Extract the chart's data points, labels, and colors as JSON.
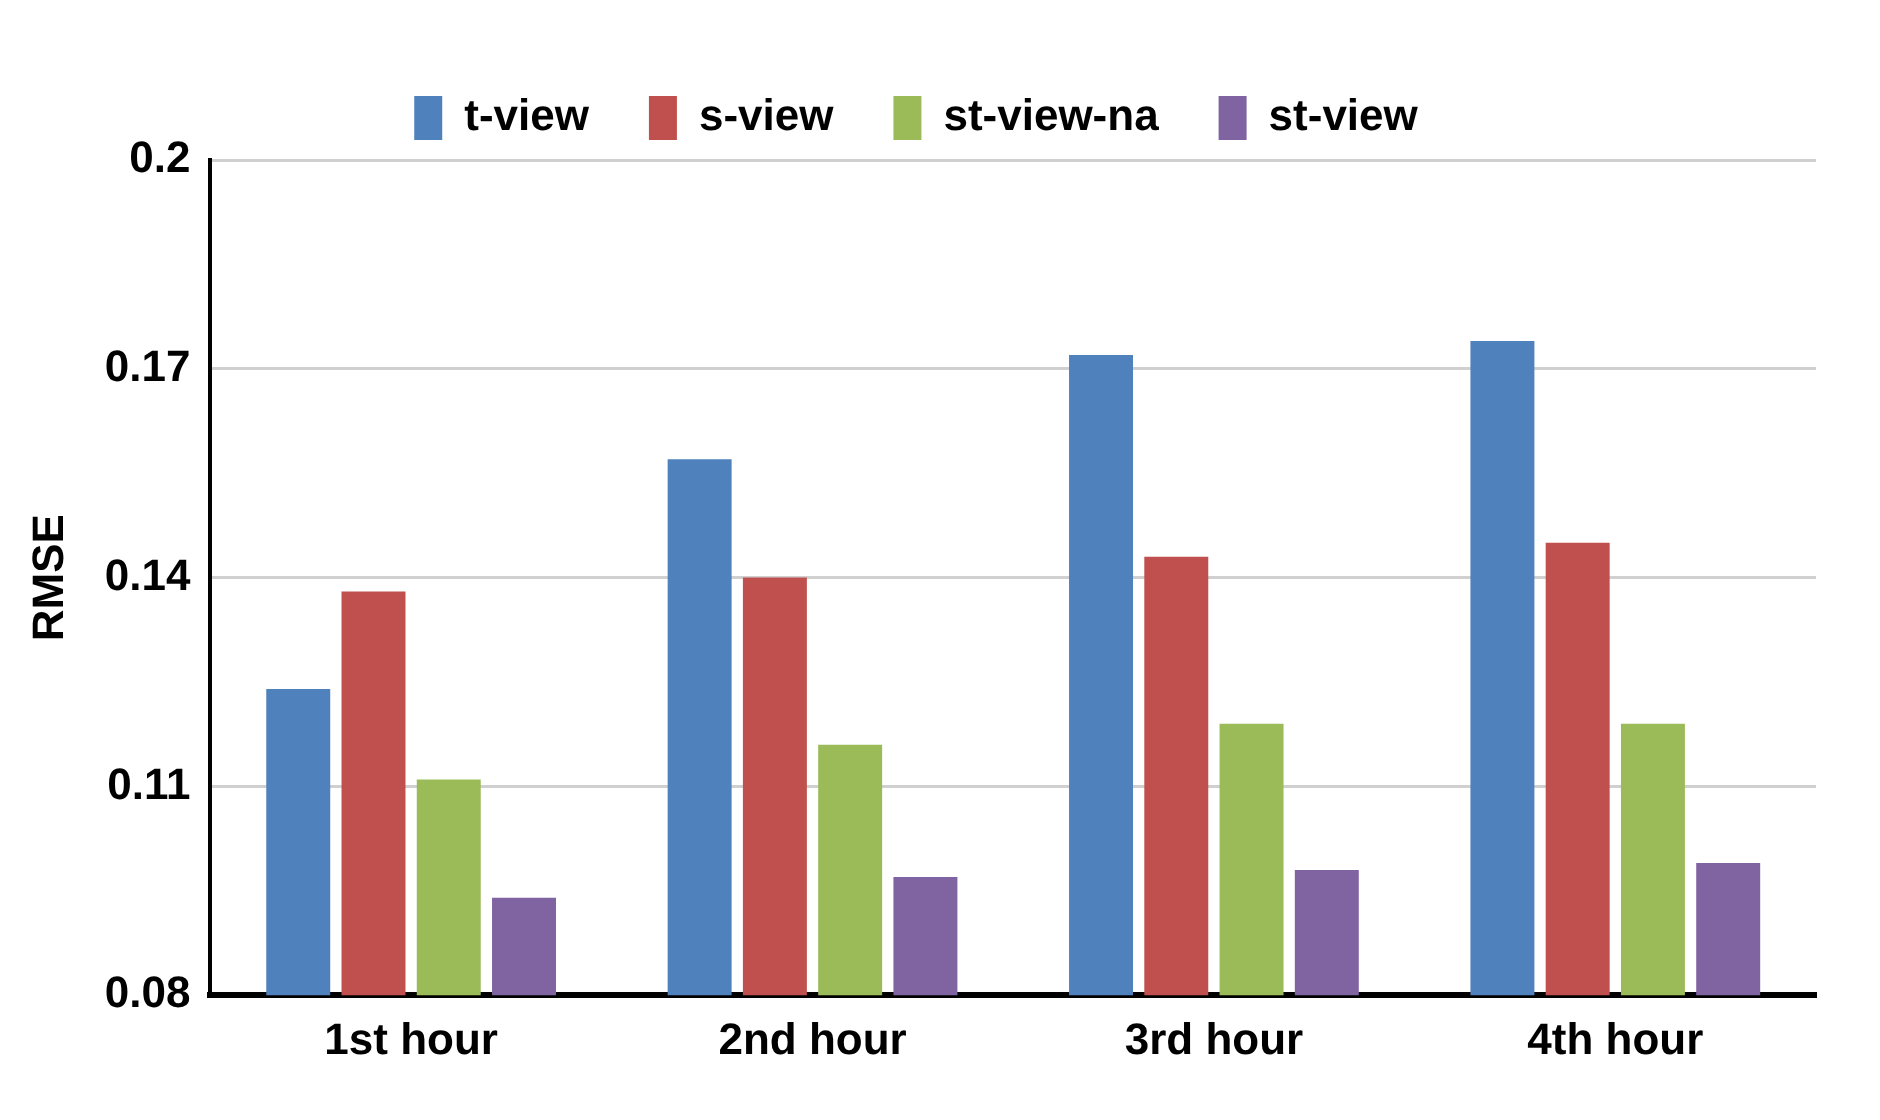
{
  "chart_data": {
    "type": "bar",
    "ylabel": "RMSE",
    "categories": [
      "1st hour",
      "2nd hour",
      "3rd hour",
      "4th hour"
    ],
    "series": [
      {
        "name": "t-view",
        "color": "#4f81bd",
        "values": [
          0.124,
          0.157,
          0.172,
          0.174
        ]
      },
      {
        "name": "s-view",
        "color": "#c0504d",
        "values": [
          0.138,
          0.14,
          0.143,
          0.145
        ]
      },
      {
        "name": "st-view-na",
        "color": "#9bbb59",
        "values": [
          0.111,
          0.116,
          0.119,
          0.119
        ]
      },
      {
        "name": "st-view",
        "color": "#8064a2",
        "values": [
          0.094,
          0.097,
          0.098,
          0.099
        ]
      }
    ],
    "ylim": [
      0.08,
      0.2
    ],
    "yticks": [
      0.08,
      0.11,
      0.14,
      0.17,
      0.2
    ],
    "grid": "y",
    "legend": "top"
  }
}
